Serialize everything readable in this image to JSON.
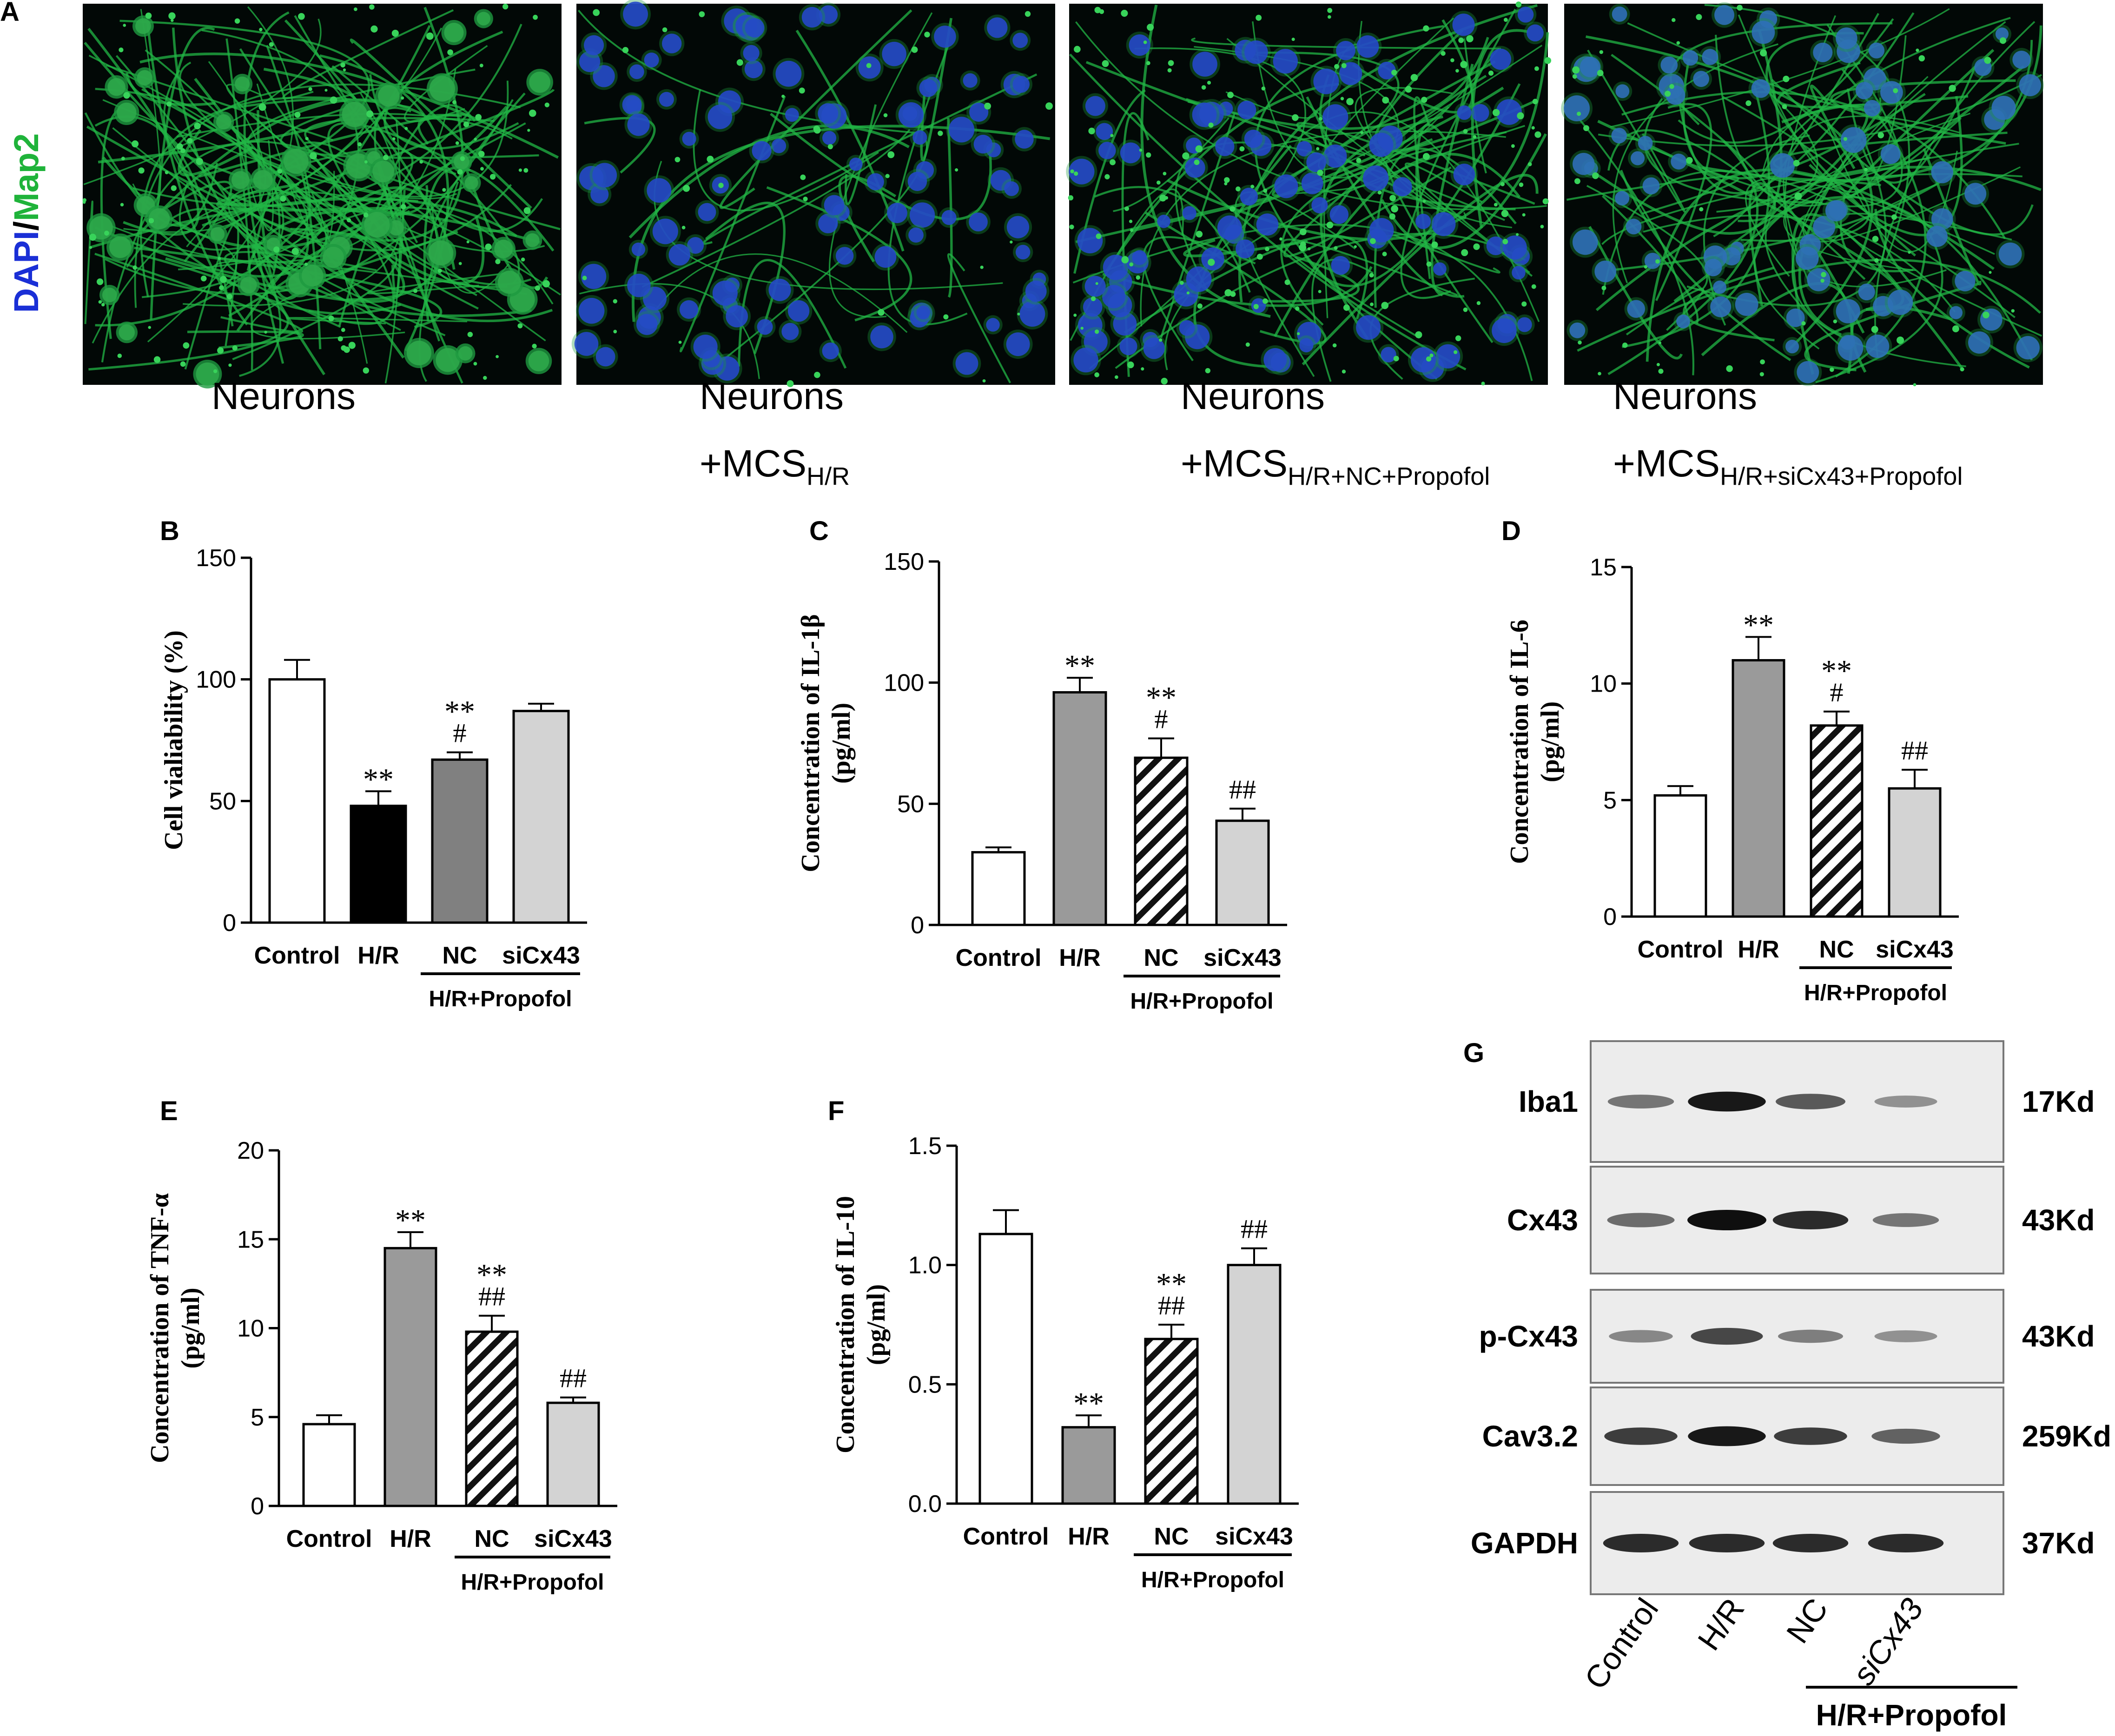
{
  "panel_letters": [
    "A",
    "B",
    "C",
    "D",
    "E",
    "F",
    "G"
  ],
  "panel_a": {
    "stain_label": {
      "dapi": "DAPI",
      "sep": "/",
      "map2": "Map2"
    },
    "images": [
      {
        "line1": "Neurons",
        "line2": "",
        "sub": ""
      },
      {
        "line1": "Neurons",
        "line2": "+MCS",
        "sub": "H/R"
      },
      {
        "line1": "Neurons",
        "line2": "+MCS",
        "sub": "H/R+NC+Propofol"
      },
      {
        "line1": "Neurons",
        "line2": "+MCS",
        "sub": "H/R+siCx43+Propofol"
      }
    ]
  },
  "chart_data": [
    {
      "panel": "B",
      "type": "bar",
      "categories": [
        "Control",
        "H/R",
        "NC",
        "siCx43"
      ],
      "group_label": "H/R+Propofol",
      "ylabel": "Cell vialiability (%)",
      "ylim": [
        0,
        150
      ],
      "yticks": [
        0,
        50,
        100,
        150
      ],
      "values": [
        100,
        48,
        67,
        87
      ],
      "errors": [
        8,
        6,
        3,
        3
      ],
      "annotations": [
        "",
        "**",
        "**\n#",
        ""
      ],
      "fills": [
        "white",
        "black",
        "#808080",
        "#d3d3d3"
      ]
    },
    {
      "panel": "C",
      "type": "bar",
      "categories": [
        "Control",
        "H/R",
        "NC",
        "siCx43"
      ],
      "group_label": "H/R+Propofol",
      "ylabel": "Concentration of IL-1β\n(pg/ml)",
      "ylim": [
        0,
        150
      ],
      "yticks": [
        0,
        50,
        100,
        150
      ],
      "values": [
        30,
        96,
        69,
        43
      ],
      "errors": [
        2,
        6,
        8,
        5
      ],
      "annotations": [
        "",
        "**",
        "**\n#",
        "##"
      ],
      "fills": [
        "white",
        "#9a9a9a",
        "hatch",
        "#d3d3d3"
      ]
    },
    {
      "panel": "D",
      "type": "bar",
      "categories": [
        "Control",
        "H/R",
        "NC",
        "siCx43"
      ],
      "group_label": "H/R+Propofol",
      "ylabel": "Concentration of IL-6\n(pg/ml)",
      "ylim": [
        0,
        15
      ],
      "yticks": [
        0,
        5,
        10,
        15
      ],
      "values": [
        5.2,
        11.0,
        8.2,
        5.5
      ],
      "errors": [
        0.4,
        1.0,
        0.6,
        0.8
      ],
      "annotations": [
        "",
        "**",
        "**\n#",
        "##"
      ],
      "fills": [
        "white",
        "#9a9a9a",
        "hatch",
        "#d3d3d3"
      ]
    },
    {
      "panel": "E",
      "type": "bar",
      "categories": [
        "Control",
        "H/R",
        "NC",
        "siCx43"
      ],
      "group_label": "H/R+Propofol",
      "ylabel": "Concentration of TNF-α\n(pg/ml)",
      "ylim": [
        0,
        20
      ],
      "yticks": [
        0,
        5,
        10,
        15,
        20
      ],
      "values": [
        4.6,
        14.5,
        9.8,
        5.8
      ],
      "errors": [
        0.5,
        0.9,
        0.9,
        0.3
      ],
      "annotations": [
        "",
        "**",
        "**\n##",
        "##"
      ],
      "fills": [
        "white",
        "#9a9a9a",
        "hatch",
        "#d3d3d3"
      ]
    },
    {
      "panel": "F",
      "type": "bar",
      "categories": [
        "Control",
        "H/R",
        "NC",
        "siCx43"
      ],
      "group_label": "H/R+Propofol",
      "ylabel": "Concentration of IL-10\n(pg/ml)",
      "ylim": [
        0,
        1.5
      ],
      "yticks": [
        "0.0",
        "0.5",
        "1.0",
        "1.5"
      ],
      "values": [
        1.13,
        0.32,
        0.69,
        1.0
      ],
      "errors": [
        0.1,
        0.05,
        0.06,
        0.07
      ],
      "annotations": [
        "",
        "**",
        "**\n##",
        "##"
      ],
      "fills": [
        "white",
        "#9a9a9a",
        "hatch",
        "#d3d3d3"
      ]
    }
  ],
  "western_blot": {
    "rows": [
      {
        "protein": "Iba1",
        "size": "17Kd",
        "intensities": [
          0.45,
          0.95,
          0.6,
          0.3
        ]
      },
      {
        "protein": "Cx43",
        "size": "43Kd",
        "intensities": [
          0.5,
          1.0,
          0.85,
          0.45
        ]
      },
      {
        "protein": "p-Cx43",
        "size": "43Kd",
        "intensities": [
          0.35,
          0.7,
          0.4,
          0.3
        ]
      },
      {
        "protein": "Cav3.2",
        "size": "259Kd",
        "intensities": [
          0.75,
          0.95,
          0.75,
          0.55
        ]
      },
      {
        "protein": "GAPDH",
        "size": "37Kd",
        "intensities": [
          0.85,
          0.85,
          0.85,
          0.85
        ]
      }
    ],
    "lanes": [
      "Control",
      "H/R",
      "NC",
      "siCx43"
    ],
    "group_label": "H/R+Propofol"
  }
}
